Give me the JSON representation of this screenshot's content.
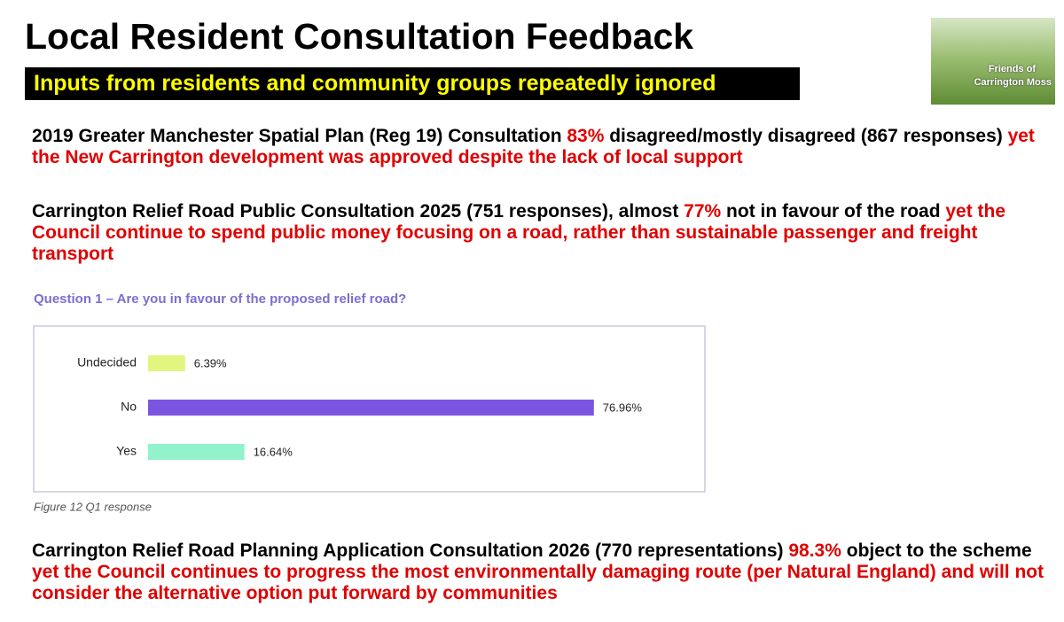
{
  "header": {
    "title": "Local Resident Consultation Feedback",
    "subtitle": "Inputs from residents and community groups repeatedly ignored",
    "logo_lines": [
      "Friends of",
      "Carrington Moss"
    ]
  },
  "paragraphs": [
    {
      "segments": [
        {
          "text": "2019 Greater Manchester Spatial Plan (Reg 19) Consultation ",
          "color": "#000000"
        },
        {
          "text": "83%",
          "color": "#e00000"
        },
        {
          "text": " disagreed/mostly disagreed (867 responses) ",
          "color": "#000000"
        },
        {
          "text": " yet the New Carrington development was approved despite the lack of local support",
          "color": "#e00000"
        }
      ]
    },
    {
      "segments": [
        {
          "text": "Carrington Relief Road Public Consultation 2025 (751 responses), almost ",
          "color": "#000000"
        },
        {
          "text": "77%",
          "color": "#e00000"
        },
        {
          "text": " not in favour of the road ",
          "color": "#000000"
        },
        {
          "text": "yet the Council continue to spend public money focusing on a road, rather than sustainable passenger and freight transport",
          "color": "#e00000"
        }
      ]
    },
    {
      "segments": [
        {
          "text": "Carrington Relief Road Planning Application Consultation 2026 (770 representations) ",
          "color": "#000000"
        },
        {
          "text": "98.3%",
          "color": "#e00000"
        },
        {
          "text": " object to the scheme ",
          "color": "#000000"
        },
        {
          "text": " yet the Council continues to progress the most environmentally damaging route (per Natural England) and will not consider the alternative option put forward by communities",
          "color": "#e00000"
        }
      ]
    }
  ],
  "chart_data": {
    "type": "bar",
    "orientation": "horizontal",
    "title": "Question 1 – Are you in favour of the proposed relief road?",
    "caption": "Figure 12 Q1 response",
    "categories": [
      "Undecided",
      "No",
      "Yes"
    ],
    "values": [
      6.39,
      76.96,
      16.64
    ],
    "value_labels": [
      "6.39%",
      "76.96%",
      "16.64%"
    ],
    "colors": [
      "#e2f57e",
      "#7b55e0",
      "#92f2cc"
    ],
    "xlim": [
      0,
      90
    ]
  }
}
